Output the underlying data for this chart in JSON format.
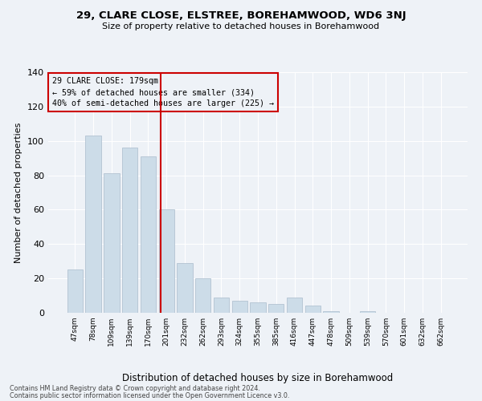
{
  "title": "29, CLARE CLOSE, ELSTREE, BOREHAMWOOD, WD6 3NJ",
  "subtitle": "Size of property relative to detached houses in Borehamwood",
  "xlabel": "Distribution of detached houses by size in Borehamwood",
  "ylabel": "Number of detached properties",
  "footnote1": "Contains HM Land Registry data © Crown copyright and database right 2024.",
  "footnote2": "Contains public sector information licensed under the Open Government Licence v3.0.",
  "annotation_line1": "29 CLARE CLOSE: 179sqm",
  "annotation_line2": "← 59% of detached houses are smaller (334)",
  "annotation_line3": "40% of semi-detached houses are larger (225) →",
  "bar_labels": [
    "47sqm",
    "78sqm",
    "109sqm",
    "139sqm",
    "170sqm",
    "201sqm",
    "232sqm",
    "262sqm",
    "293sqm",
    "324sqm",
    "355sqm",
    "385sqm",
    "416sqm",
    "447sqm",
    "478sqm",
    "509sqm",
    "539sqm",
    "570sqm",
    "601sqm",
    "632sqm",
    "662sqm"
  ],
  "bar_values": [
    25,
    103,
    81,
    96,
    91,
    60,
    29,
    20,
    9,
    7,
    6,
    5,
    9,
    4,
    1,
    0,
    1,
    0,
    0,
    0,
    0
  ],
  "bar_color": "#ccdce8",
  "bar_edgecolor": "#aabccc",
  "vline_x_index": 4.68,
  "vline_color": "#cc0000",
  "annotation_box_edgecolor": "#cc0000",
  "background_color": "#eef2f7",
  "ylim": [
    0,
    140
  ],
  "yticks": [
    0,
    20,
    40,
    60,
    80,
    100,
    120,
    140
  ]
}
